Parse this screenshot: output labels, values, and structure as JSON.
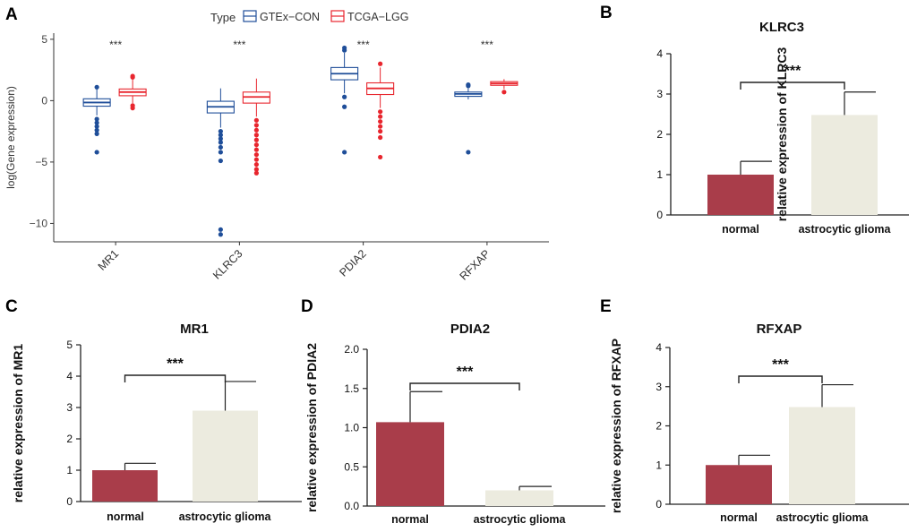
{
  "colors": {
    "gtex": "#1f4e99",
    "tcga": "#e8262e",
    "bar_normal": "#a93d4a",
    "bar_astro": "#ecebdf",
    "axis": "#333333",
    "text": "#111111"
  },
  "chart_data": [
    {
      "panel": "A",
      "type": "box",
      "legend_title": "Type",
      "legend": [
        "GTEx−CON",
        "TCGA−LGG"
      ],
      "ylabel": "log(Gene expression)",
      "ylim": [
        -11.5,
        5.5
      ],
      "yticks": [
        5,
        0,
        -5,
        -10
      ],
      "ytick_labels": [
        "5",
        "0",
        "−5",
        "−10"
      ],
      "categories": [
        "MR1",
        "KLRC3",
        "PDIA2",
        "RFXAP"
      ],
      "significance": [
        "***",
        "***",
        "***",
        "***"
      ],
      "series": [
        {
          "name": "GTEx−CON",
          "boxes": [
            {
              "q1": -0.45,
              "median": -0.15,
              "q3": 0.15,
              "whisker_low": -1.2,
              "whisker_high": 1.0,
              "outliers": [
                1.1,
                -1.5,
                -1.8,
                -2.1,
                -2.4,
                -2.7,
                -4.2
              ]
            },
            {
              "q1": -1.0,
              "median": -0.5,
              "q3": -0.05,
              "whisker_low": -2.2,
              "whisker_high": 1.0,
              "outliers": [
                -2.5,
                -2.8,
                -3.1,
                -3.4,
                -3.8,
                -4.2,
                -4.9,
                -10.5,
                -10.9
              ]
            },
            {
              "q1": 1.7,
              "median": 2.2,
              "q3": 2.7,
              "whisker_low": 0.6,
              "whisker_high": 3.9,
              "outliers": [
                4.1,
                4.3,
                0.3,
                -0.5,
                -4.2
              ]
            },
            {
              "q1": 0.35,
              "median": 0.55,
              "q3": 0.7,
              "whisker_low": 0.1,
              "whisker_high": 1.0,
              "outliers": [
                1.2,
                1.3,
                -4.2
              ]
            }
          ]
        },
        {
          "name": "TCGA−LGG",
          "boxes": [
            {
              "q1": 0.4,
              "median": 0.7,
              "q3": 0.95,
              "whisker_low": -0.2,
              "whisker_high": 1.7,
              "outliers": [
                1.9,
                2.0,
                -0.4,
                -0.6
              ]
            },
            {
              "q1": -0.2,
              "median": 0.3,
              "q3": 0.7,
              "whisker_low": -1.3,
              "whisker_high": 1.8,
              "outliers": [
                -1.6,
                -2.0,
                -2.4,
                -2.8,
                -3.2,
                -3.6,
                -4.0,
                -4.4,
                -4.8,
                -5.2,
                -5.6,
                -5.9
              ]
            },
            {
              "q1": 0.5,
              "median": 1.0,
              "q3": 1.45,
              "whisker_low": -0.6,
              "whisker_high": 2.7,
              "outliers": [
                3.0,
                -0.9,
                -1.3,
                -1.7,
                -2.1,
                -2.5,
                -3.0,
                -4.6
              ]
            },
            {
              "q1": 1.25,
              "median": 1.4,
              "q3": 1.55,
              "whisker_low": 0.95,
              "whisker_high": 1.75,
              "outliers": [
                0.7
              ]
            }
          ]
        }
      ]
    },
    {
      "panel": "B",
      "type": "bar",
      "title": "KLRC3",
      "ylabel": "relative expression of KLRC3",
      "ylim": [
        0,
        4
      ],
      "yticks": [
        0,
        1,
        2,
        3,
        4
      ],
      "ytick_labels": [
        "0",
        "1",
        "2",
        "3",
        "4"
      ],
      "categories": [
        "normal",
        "astrocytic glioma"
      ],
      "values": [
        1.0,
        2.48
      ],
      "errors": [
        0.33,
        0.57
      ],
      "significance": "***"
    },
    {
      "panel": "C",
      "type": "bar",
      "title": "MR1",
      "ylabel": "relative expression of MR1",
      "ylim": [
        0,
        5
      ],
      "yticks": [
        0,
        1,
        2,
        3,
        4,
        5
      ],
      "ytick_labels": [
        "0",
        "1",
        "2",
        "3",
        "4",
        "5"
      ],
      "categories": [
        "normal",
        "astrocytic glioma"
      ],
      "values": [
        1.0,
        2.9
      ],
      "errors": [
        0.22,
        0.93
      ],
      "significance": "***"
    },
    {
      "panel": "D",
      "type": "bar",
      "title": "PDIA2",
      "ylabel": "relative expression of PDIA2",
      "ylim": [
        0,
        2.0
      ],
      "yticks": [
        0,
        0.5,
        1.0,
        1.5,
        2.0
      ],
      "ytick_labels": [
        "0.0",
        "0.5",
        "1.0",
        "1.5",
        "2.0"
      ],
      "categories": [
        "normal",
        "astrocytic glioma"
      ],
      "values": [
        1.07,
        0.2
      ],
      "errors": [
        0.39,
        0.05
      ],
      "significance": "***"
    },
    {
      "panel": "E",
      "type": "bar",
      "title": "RFXAP",
      "ylabel": "relative expression of RFXAP",
      "ylim": [
        0,
        4
      ],
      "yticks": [
        0,
        1,
        2,
        3,
        4
      ],
      "ytick_labels": [
        "0",
        "1",
        "2",
        "3",
        "4"
      ],
      "categories": [
        "normal",
        "astrocytic glioma"
      ],
      "values": [
        1.0,
        2.48
      ],
      "errors": [
        0.25,
        0.57
      ],
      "significance": "***"
    }
  ]
}
